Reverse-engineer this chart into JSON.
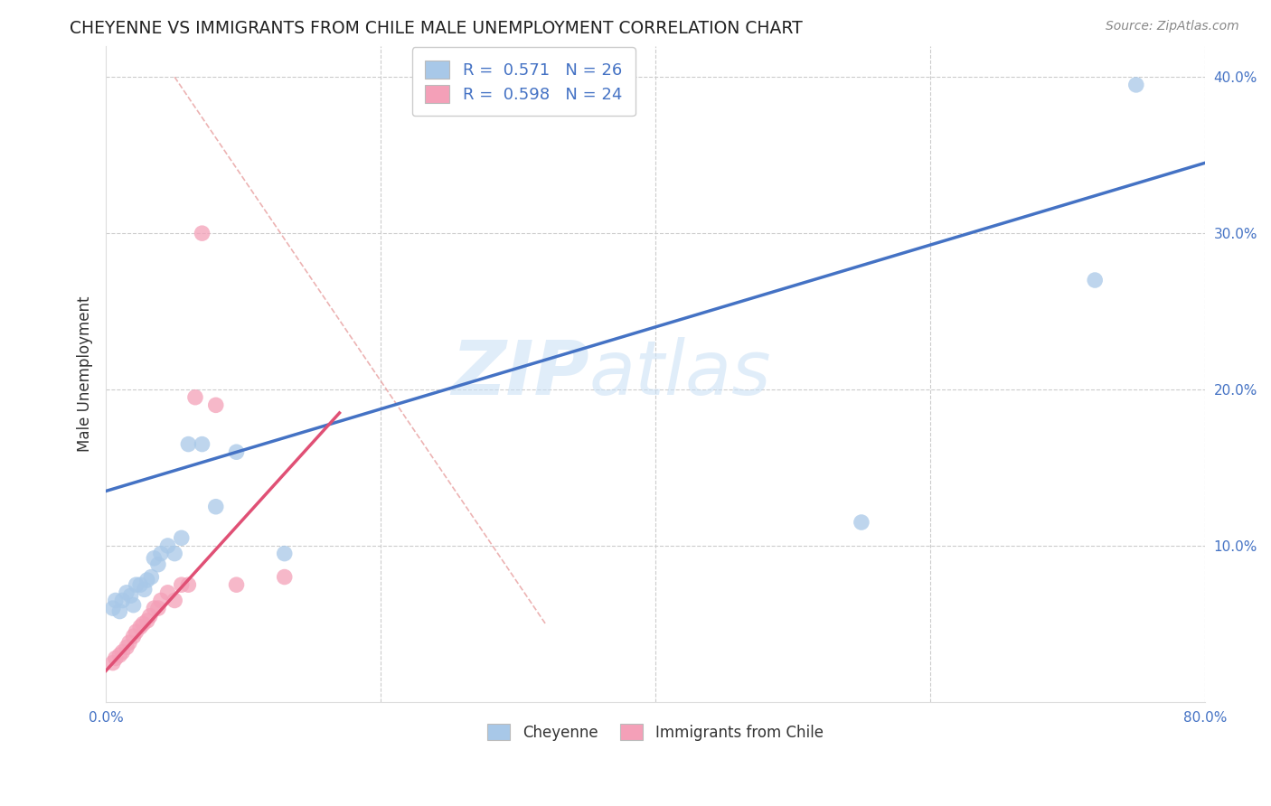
{
  "title": "CHEYENNE VS IMMIGRANTS FROM CHILE MALE UNEMPLOYMENT CORRELATION CHART",
  "source_text": "Source: ZipAtlas.com",
  "ylabel": "Male Unemployment",
  "xlim": [
    0.0,
    0.8
  ],
  "ylim": [
    0.0,
    0.42
  ],
  "x_ticks": [
    0.0,
    0.2,
    0.4,
    0.6,
    0.8
  ],
  "x_tick_labels": [
    "0.0%",
    "",
    "",
    "",
    "80.0%"
  ],
  "y_ticks_right": [
    0.0,
    0.1,
    0.2,
    0.3,
    0.4
  ],
  "y_tick_labels_right": [
    "",
    "10.0%",
    "20.0%",
    "30.0%",
    "40.0%"
  ],
  "cheyenne_color": "#a8c8e8",
  "chile_color": "#f4a0b8",
  "cheyenne_line_color": "#4472c4",
  "chile_line_color": "#e05075",
  "cheyenne_scatter_x": [
    0.005,
    0.007,
    0.01,
    0.012,
    0.015,
    0.018,
    0.02,
    0.022,
    0.025,
    0.028,
    0.03,
    0.033,
    0.035,
    0.038,
    0.04,
    0.045,
    0.05,
    0.055,
    0.06,
    0.07,
    0.08,
    0.095,
    0.13,
    0.55,
    0.72,
    0.75
  ],
  "cheyenne_scatter_y": [
    0.06,
    0.065,
    0.058,
    0.065,
    0.07,
    0.068,
    0.062,
    0.075,
    0.075,
    0.072,
    0.078,
    0.08,
    0.092,
    0.088,
    0.095,
    0.1,
    0.095,
    0.105,
    0.165,
    0.165,
    0.125,
    0.16,
    0.095,
    0.115,
    0.27,
    0.395
  ],
  "chile_scatter_x": [
    0.005,
    0.007,
    0.01,
    0.012,
    0.015,
    0.017,
    0.02,
    0.022,
    0.025,
    0.027,
    0.03,
    0.032,
    0.035,
    0.038,
    0.04,
    0.045,
    0.05,
    0.055,
    0.06,
    0.065,
    0.07,
    0.08,
    0.095,
    0.13
  ],
  "chile_scatter_y": [
    0.025,
    0.028,
    0.03,
    0.032,
    0.035,
    0.038,
    0.042,
    0.045,
    0.048,
    0.05,
    0.052,
    0.055,
    0.06,
    0.06,
    0.065,
    0.07,
    0.065,
    0.075,
    0.075,
    0.195,
    0.3,
    0.19,
    0.075,
    0.08
  ],
  "cheyenne_line_x": [
    0.0,
    0.8
  ],
  "cheyenne_line_y": [
    0.135,
    0.345
  ],
  "chile_line_x": [
    0.0,
    0.17
  ],
  "chile_line_y": [
    0.02,
    0.185
  ],
  "diag_line_x": [
    0.05,
    0.32
  ],
  "diag_line_y": [
    0.4,
    0.05
  ],
  "watermark_zip": "ZIP",
  "watermark_atlas": "atlas",
  "background_color": "#ffffff",
  "grid_color": "#cccccc"
}
